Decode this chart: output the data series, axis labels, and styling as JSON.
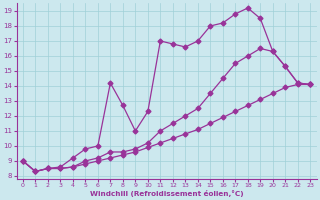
{
  "xlabel": "Windchill (Refroidissement éolien,°C)",
  "bg_color": "#cce8ee",
  "line_color": "#993399",
  "xlim": [
    -0.5,
    23.5
  ],
  "ylim": [
    7.8,
    19.5
  ],
  "xticks": [
    0,
    1,
    2,
    3,
    4,
    5,
    6,
    7,
    8,
    9,
    10,
    11,
    12,
    13,
    14,
    15,
    16,
    17,
    18,
    19,
    20,
    21,
    22,
    23
  ],
  "yticks": [
    8,
    9,
    10,
    11,
    12,
    13,
    14,
    15,
    16,
    17,
    18,
    19
  ],
  "line1_x": [
    0,
    1,
    2,
    3,
    4,
    5,
    6,
    7,
    8,
    9,
    10,
    11,
    12,
    13,
    14,
    15,
    16,
    17,
    18,
    19,
    20,
    21,
    22,
    23
  ],
  "line1_y": [
    9.0,
    8.3,
    8.5,
    8.5,
    8.6,
    8.8,
    9.0,
    9.2,
    9.4,
    9.6,
    9.9,
    10.2,
    10.5,
    10.8,
    11.1,
    11.5,
    11.9,
    12.3,
    12.7,
    13.1,
    13.5,
    13.9,
    14.1,
    14.1
  ],
  "line2_x": [
    0,
    1,
    2,
    3,
    4,
    5,
    6,
    7,
    8,
    9,
    10,
    11,
    12,
    13,
    14,
    15,
    16,
    17,
    18,
    19,
    20,
    21,
    22,
    23
  ],
  "line2_y": [
    9.0,
    8.3,
    8.5,
    8.5,
    8.6,
    9.0,
    9.2,
    9.6,
    9.6,
    9.8,
    10.2,
    11.0,
    11.5,
    12.0,
    12.5,
    13.5,
    14.5,
    15.5,
    16.0,
    16.5,
    16.3,
    15.3,
    14.2,
    14.1
  ],
  "line3_x": [
    0,
    1,
    2,
    3,
    4,
    5,
    6,
    7,
    8,
    9,
    10,
    11,
    12,
    13,
    14,
    15,
    16,
    17,
    18,
    19,
    20,
    21,
    22,
    23
  ],
  "line3_y": [
    9.0,
    8.3,
    8.5,
    8.6,
    9.2,
    9.8,
    10.0,
    14.2,
    12.7,
    11.0,
    12.3,
    17.0,
    16.8,
    16.6,
    17.0,
    18.0,
    18.2,
    18.8,
    19.2,
    18.5,
    16.3,
    15.3,
    14.2,
    14.1
  ],
  "grid_color": "#a0d0d8",
  "marker": "D",
  "markersize": 2.5,
  "linewidth": 0.9
}
